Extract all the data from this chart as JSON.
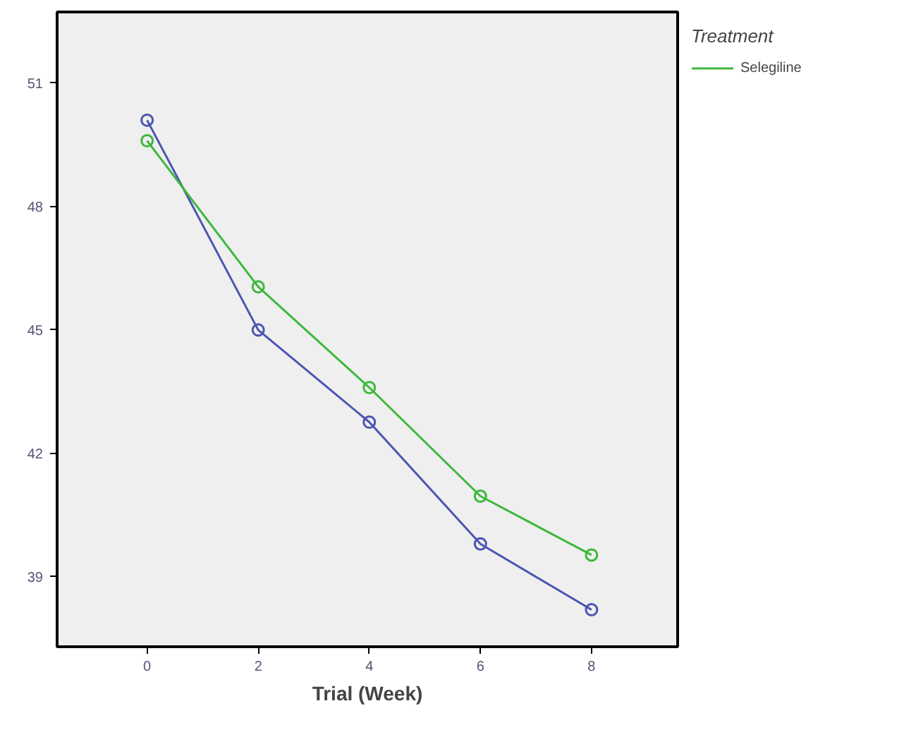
{
  "chart_data": {
    "type": "line",
    "xlabel": "Trial (Week)",
    "legend_title": "Treatment",
    "legend": "right",
    "x": [
      0,
      2,
      4,
      6,
      8
    ],
    "series": [
      {
        "color": "#4b55b0",
        "values": [
          50.1,
          45.0,
          42.76,
          39.8,
          38.2
        ]
      },
      {
        "name": "Selegiline",
        "color": "#3cb83c",
        "values": [
          49.6,
          46.05,
          43.6,
          40.96,
          39.53
        ]
      }
    ],
    "xlim": [
      -1.62,
      9.55
    ],
    "ylim": [
      37.3,
      52.73
    ],
    "xticks": [
      0,
      2,
      4,
      6,
      8
    ],
    "yticks": [
      39,
      42,
      45,
      48,
      51
    ],
    "grid": false,
    "marker": "circle",
    "line_style": "solid"
  }
}
